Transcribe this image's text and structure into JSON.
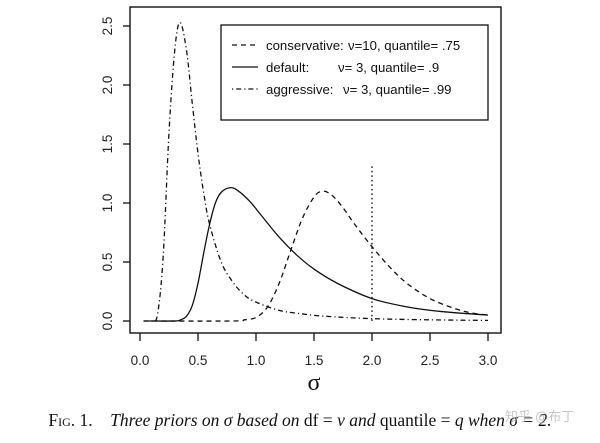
{
  "chart_data": {
    "type": "line",
    "title": "",
    "xlabel": "σ",
    "ylabel": "",
    "xlim": [
      0.0,
      3.0
    ],
    "ylim": [
      0.0,
      2.5
    ],
    "x_ticks": [
      "0.0",
      "0.5",
      "1.0",
      "1.5",
      "2.0",
      "2.5",
      "3.0"
    ],
    "y_ticks": [
      "0.0",
      "0.5",
      "1.0",
      "1.5",
      "2.0",
      "2.5"
    ],
    "grid": false,
    "legend_position": "top-right",
    "annotations": [
      {
        "type": "vline",
        "x": 2.0,
        "y_top": 1.31,
        "style": "dotted"
      }
    ],
    "series": [
      {
        "name": "conservative",
        "legend_label": "conservative:",
        "legend_params": "ν=10, quantile= .75",
        "style": "dashed",
        "x": [
          0.03,
          0.8,
          0.9,
          1.0,
          1.1,
          1.2,
          1.3,
          1.4,
          1.5,
          1.57,
          1.65,
          1.75,
          1.85,
          2.0,
          2.15,
          2.3,
          2.5,
          2.7,
          2.85,
          3.0
        ],
        "values": [
          0.0,
          0.0,
          0.01,
          0.03,
          0.12,
          0.32,
          0.6,
          0.87,
          1.05,
          1.1,
          1.07,
          0.96,
          0.82,
          0.63,
          0.46,
          0.32,
          0.19,
          0.11,
          0.07,
          0.05
        ]
      },
      {
        "name": "default",
        "legend_label": "default:",
        "legend_params": "ν= 3, quantile= .9",
        "style": "solid",
        "x": [
          0.03,
          0.3,
          0.35,
          0.4,
          0.45,
          0.5,
          0.55,
          0.6,
          0.65,
          0.7,
          0.78,
          0.85,
          0.95,
          1.05,
          1.2,
          1.35,
          1.5,
          1.7,
          2.0,
          2.3,
          2.6,
          3.0
        ],
        "values": [
          0.0,
          0.0,
          0.01,
          0.04,
          0.13,
          0.32,
          0.58,
          0.82,
          1.0,
          1.09,
          1.13,
          1.1,
          1.01,
          0.89,
          0.71,
          0.56,
          0.44,
          0.32,
          0.19,
          0.12,
          0.08,
          0.05
        ]
      },
      {
        "name": "aggressive",
        "legend_label": "aggressive:",
        "legend_params": "ν= 3, quantile= .99",
        "style": "dotdash",
        "x": [
          0.1,
          0.15,
          0.2,
          0.25,
          0.3,
          0.345,
          0.4,
          0.45,
          0.5,
          0.55,
          0.6,
          0.7,
          0.8,
          0.9,
          1.0,
          1.2,
          1.4,
          1.6,
          2.0,
          2.5,
          3.0
        ],
        "values": [
          0.0,
          0.05,
          0.55,
          1.6,
          2.3,
          2.53,
          2.3,
          1.85,
          1.42,
          1.08,
          0.82,
          0.5,
          0.33,
          0.22,
          0.16,
          0.09,
          0.06,
          0.04,
          0.02,
          0.01,
          0.005
        ]
      }
    ]
  },
  "caption": {
    "fig_label": "Fig. 1.",
    "part1": "Three priors on σ based on",
    "part2": " df = ",
    "part3": "ν and",
    "part4": " quantile = ",
    "part5": "q when σ = 2."
  },
  "watermark": "知乎 @布丁"
}
